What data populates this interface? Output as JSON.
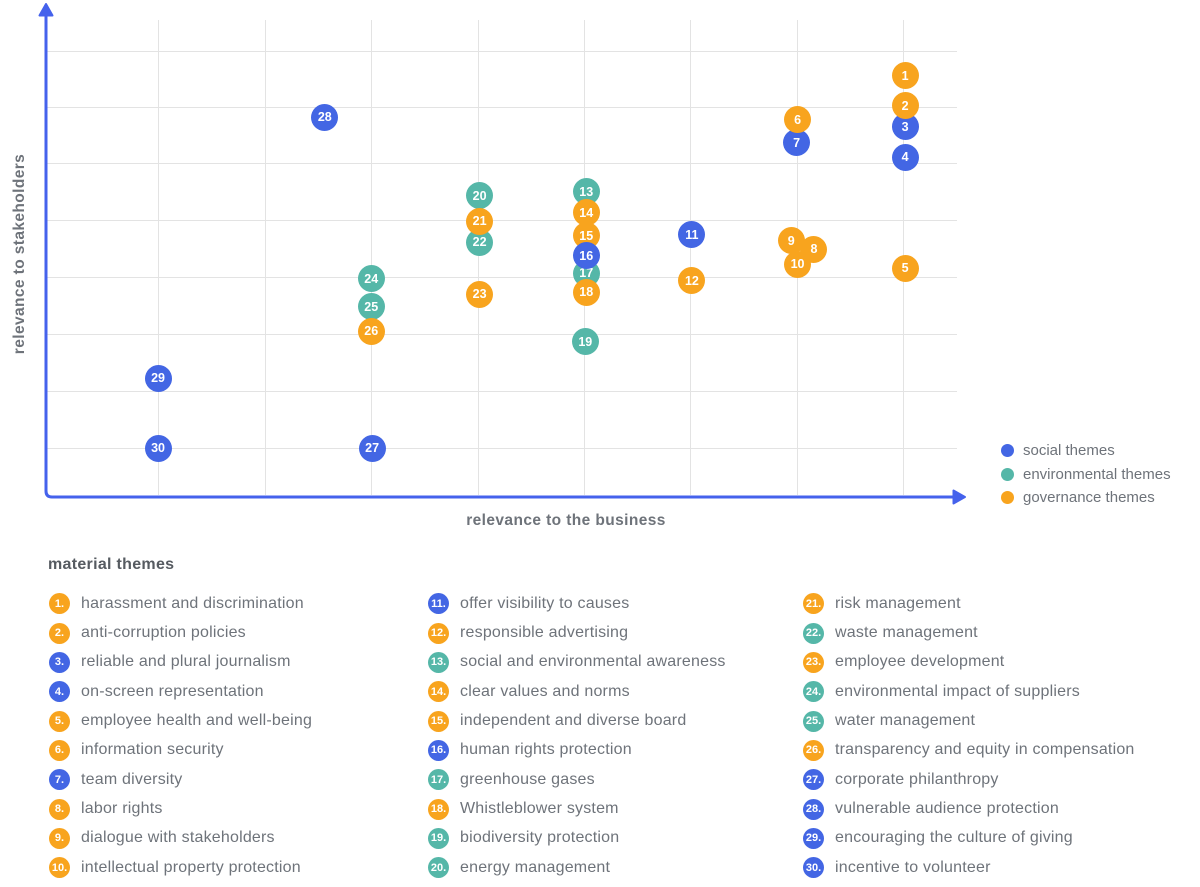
{
  "colors": {
    "social": "#4366e4",
    "environmental": "#55b7a8",
    "governance": "#f8a41e",
    "axis_blue": "#4562ec",
    "grid_gray": "#e3e3e3"
  },
  "chart": {
    "x_axis_label": "relevance to the business",
    "y_axis_label": "relevance to stakeholders"
  },
  "themes_list": {
    "heading": "material themes"
  },
  "chart_data": {
    "type": "scatter",
    "title": "",
    "xlabel": "relevance to the business",
    "ylabel": "relevance to stakeholders",
    "xlim": [
      0,
      100
    ],
    "ylim": [
      0,
      100
    ],
    "axis_tick_labels": "none",
    "grid": true,
    "legend_position": "bottom-right",
    "legend": [
      {
        "label": "social themes",
        "theme": "social"
      },
      {
        "label": "environmental themes",
        "theme": "environmental"
      },
      {
        "label": "governance themes",
        "theme": "governance"
      }
    ],
    "marker": "numbered-circle",
    "points": [
      {
        "n": 1,
        "label": "harassment and discrimination",
        "theme": "governance",
        "x": 94.3,
        "y": 86.1
      },
      {
        "n": 2,
        "label": "anti-corruption policies",
        "theme": "governance",
        "x": 94.3,
        "y": 80.0
      },
      {
        "n": 3,
        "label": "reliable and plural journalism",
        "theme": "social",
        "x": 94.3,
        "y": 75.7
      },
      {
        "n": 4,
        "label": "on-screen representation",
        "theme": "social",
        "x": 94.3,
        "y": 69.5
      },
      {
        "n": 5,
        "label": "employee health and well-being",
        "theme": "governance",
        "x": 94.3,
        "y": 46.8
      },
      {
        "n": 6,
        "label": "information security",
        "theme": "governance",
        "x": 82.5,
        "y": 77.1
      },
      {
        "n": 7,
        "label": "team diversity",
        "theme": "social",
        "x": 82.4,
        "y": 72.4
      },
      {
        "n": 8,
        "label": "labor rights",
        "theme": "governance",
        "x": 84.3,
        "y": 50.7
      },
      {
        "n": 9,
        "label": "dialogue with stakeholders",
        "theme": "governance",
        "x": 81.8,
        "y": 52.4
      },
      {
        "n": 10,
        "label": "intellectual property protection",
        "theme": "governance",
        "x": 82.5,
        "y": 47.6
      },
      {
        "n": 11,
        "label": "offer visibility to causes",
        "theme": "social",
        "x": 70.9,
        "y": 53.6
      },
      {
        "n": 12,
        "label": "responsible advertising",
        "theme": "governance",
        "x": 70.9,
        "y": 44.2
      },
      {
        "n": 13,
        "label": "social and environmental awareness",
        "theme": "environmental",
        "x": 59.3,
        "y": 62.4
      },
      {
        "n": 14,
        "label": "clear values and norms",
        "theme": "governance",
        "x": 59.3,
        "y": 58.1
      },
      {
        "n": 15,
        "label": "independent and diverse board",
        "theme": "governance",
        "x": 59.3,
        "y": 53.4
      },
      {
        "n": 16,
        "label": "human rights protection",
        "theme": "social",
        "x": 59.3,
        "y": 49.3
      },
      {
        "n": 17,
        "label": "greenhouse gases",
        "theme": "environmental",
        "x": 59.3,
        "y": 45.8
      },
      {
        "n": 18,
        "label": "Whistleblower system",
        "theme": "governance",
        "x": 59.3,
        "y": 41.9
      },
      {
        "n": 19,
        "label": "biodiversity protection",
        "theme": "environmental",
        "x": 59.2,
        "y": 31.7
      },
      {
        "n": 20,
        "label": "energy management",
        "theme": "environmental",
        "x": 47.6,
        "y": 61.6
      },
      {
        "n": 21,
        "label": "risk management",
        "theme": "governance",
        "x": 47.6,
        "y": 56.4
      },
      {
        "n": 22,
        "label": "waste management",
        "theme": "environmental",
        "x": 47.6,
        "y": 52.1
      },
      {
        "n": 23,
        "label": "employee development",
        "theme": "governance",
        "x": 47.6,
        "y": 41.5
      },
      {
        "n": 24,
        "label": "environmental impact of suppliers",
        "theme": "environmental",
        "x": 35.7,
        "y": 44.6
      },
      {
        "n": 25,
        "label": "water management",
        "theme": "environmental",
        "x": 35.7,
        "y": 38.9
      },
      {
        "n": 26,
        "label": "transparency and equity in compensation",
        "theme": "governance",
        "x": 35.7,
        "y": 33.9
      },
      {
        "n": 27,
        "label": "corporate philanthropy",
        "theme": "social",
        "x": 35.8,
        "y": 10.0
      },
      {
        "n": 28,
        "label": "vulnerable audience protection",
        "theme": "social",
        "x": 30.6,
        "y": 77.7
      },
      {
        "n": 29,
        "label": "encouraging the culture of giving",
        "theme": "social",
        "x": 12.3,
        "y": 24.3
      },
      {
        "n": 30,
        "label": "incentive to volunteer",
        "theme": "social",
        "x": 12.3,
        "y": 10.0
      }
    ]
  }
}
